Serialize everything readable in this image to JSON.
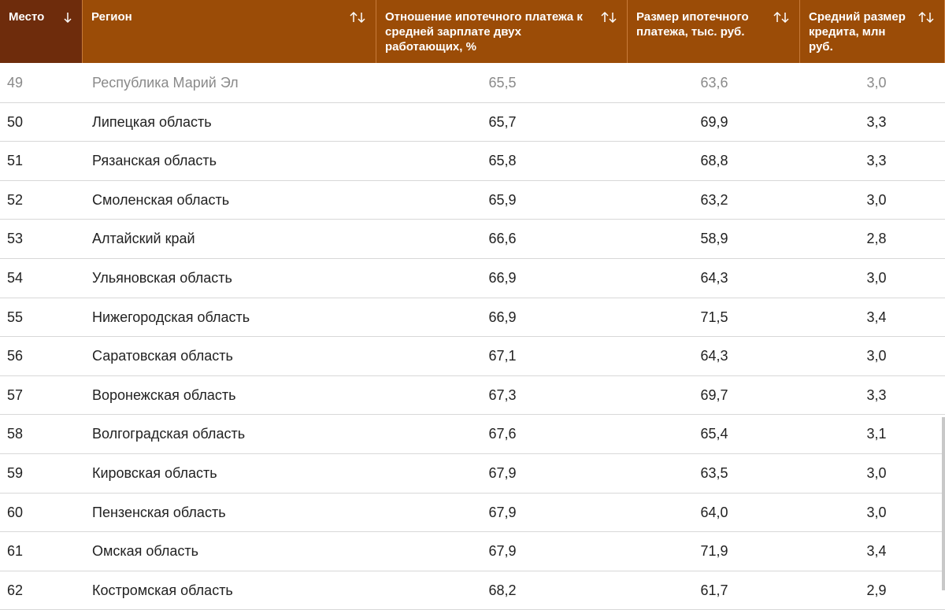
{
  "table": {
    "columns": [
      "Место",
      "Регион",
      "Отношение ипотечного платежа к средней зарплате двух работающих, %",
      "Размер ипотечного платежа, тыс. руб.",
      "Средний размер кредита, млн руб."
    ],
    "rows": [
      [
        "49",
        "Республика Марий Эл",
        "65,5",
        "63,6",
        "3,0"
      ],
      [
        "50",
        "Липецкая область",
        "65,7",
        "69,9",
        "3,3"
      ],
      [
        "51",
        "Рязанская область",
        "65,8",
        "68,8",
        "3,3"
      ],
      [
        "52",
        "Смоленская область",
        "65,9",
        "63,2",
        "3,0"
      ],
      [
        "53",
        "Алтайский край",
        "66,6",
        "58,9",
        "2,8"
      ],
      [
        "54",
        "Ульяновская область",
        "66,9",
        "64,3",
        "3,0"
      ],
      [
        "55",
        "Нижегородская область",
        "66,9",
        "71,5",
        "3,4"
      ],
      [
        "56",
        "Саратовская область",
        "67,1",
        "64,3",
        "3,0"
      ],
      [
        "57",
        "Воронежская область",
        "67,3",
        "69,7",
        "3,3"
      ],
      [
        "58",
        "Волгоградская область",
        "67,6",
        "65,4",
        "3,1"
      ],
      [
        "59",
        "Кировская область",
        "67,9",
        "63,5",
        "3,0"
      ],
      [
        "60",
        "Пензенская область",
        "67,9",
        "64,0",
        "3,0"
      ],
      [
        "61",
        "Омская область",
        "67,9",
        "71,9",
        "3,4"
      ],
      [
        "62",
        "Костромская область",
        "68,2",
        "61,7",
        "2,9"
      ]
    ]
  }
}
